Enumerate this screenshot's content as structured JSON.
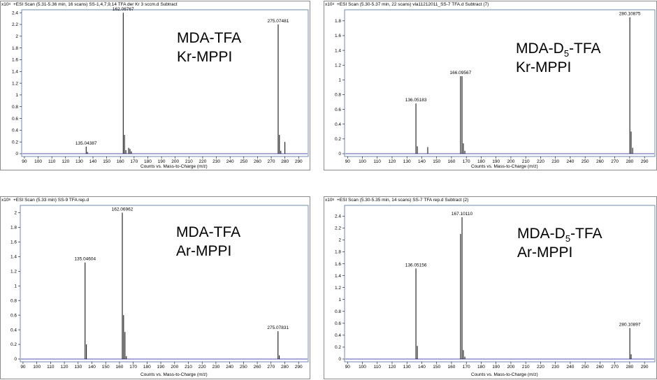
{
  "colors": {
    "frame": "#4a6fa0",
    "bars": "#000000",
    "baseline": "#1a1a9e"
  },
  "chart_data": [
    {
      "type": "bar",
      "title": "+ESI Scan (5.31-5.36 min, 16 scans) SS-1,4,7,9,14 TFA der Kr 3 sccm.d  Subtract",
      "scale": "x10",
      "scale_exp": "4",
      "label_line1": "MDA-TFA",
      "label_line2_a": "Kr-MPPI",
      "label_line2_b": "",
      "label_line2_c": "",
      "sample_line1": "MDA-TFA",
      "sample_line2": "Kr-MPPI",
      "xlabel": "Counts vs. Mass-to-Charge (m/z)",
      "xlim": [
        88,
        297
      ],
      "ylim": [
        0,
        2.45
      ],
      "yticks": [
        "0",
        "0.2",
        "0.4",
        "0.6",
        "0.8",
        "1",
        "1.2",
        "1.4",
        "1.6",
        "1.8",
        "2",
        "2.2",
        "2.4"
      ],
      "xticks": [
        "90",
        "100",
        "110",
        "120",
        "130",
        "140",
        "150",
        "160",
        "170",
        "180",
        "190",
        "200",
        "210",
        "220",
        "230",
        "240",
        "250",
        "260",
        "270",
        "280",
        "290"
      ],
      "peaks": [
        {
          "x": 135.04387,
          "y": 0.12,
          "label": "135.04387"
        },
        {
          "x": 136.0,
          "y": 0.03,
          "label": ""
        },
        {
          "x": 162.06767,
          "y": 2.4,
          "label": "162.06767"
        },
        {
          "x": 163.0,
          "y": 0.32,
          "label": ""
        },
        {
          "x": 164.0,
          "y": 0.06,
          "label": ""
        },
        {
          "x": 166.0,
          "y": 0.1,
          "label": ""
        },
        {
          "x": 167.0,
          "y": 0.08,
          "label": ""
        },
        {
          "x": 168.0,
          "y": 0.04,
          "label": ""
        },
        {
          "x": 275.07481,
          "y": 2.2,
          "label": "275.07481"
        },
        {
          "x": 276.0,
          "y": 0.32,
          "label": ""
        },
        {
          "x": 277.0,
          "y": 0.05,
          "label": ""
        },
        {
          "x": 280.0,
          "y": 0.2,
          "label": ""
        }
      ]
    },
    {
      "type": "bar",
      "title": "+ESI Scan (5.30-5.37 min, 22 scans) vla11212011_SS-7 TFA.d  Subtract (7)",
      "scale": "x10",
      "scale_exp": "3",
      "sample_line1a": "MDA-D",
      "sample_line1sub": "5",
      "sample_line1b": "-TFA",
      "sample_line2": "Kr-MPPI",
      "xlabel": "Counts vs. Mass-to-Charge (m/z)",
      "xlim": [
        88,
        297
      ],
      "ylim": [
        0,
        1.95
      ],
      "yticks": [
        "0",
        "0.2",
        "0.4",
        "0.6",
        "0.8",
        "1",
        "1.2",
        "1.4",
        "1.6",
        "1.8"
      ],
      "xticks": [
        "90",
        "100",
        "110",
        "120",
        "130",
        "140",
        "150",
        "160",
        "170",
        "180",
        "190",
        "200",
        "210",
        "220",
        "230",
        "240",
        "250",
        "260",
        "270",
        "280",
        "290"
      ],
      "peaks": [
        {
          "x": 136.05183,
          "y": 0.68,
          "label": "136.05183"
        },
        {
          "x": 137.0,
          "y": 0.1,
          "label": ""
        },
        {
          "x": 144.0,
          "y": 0.09,
          "label": ""
        },
        {
          "x": 166.09567,
          "y": 1.05,
          "label": "166.09567"
        },
        {
          "x": 167.1,
          "y": 1.05,
          "label": ""
        },
        {
          "x": 168.0,
          "y": 0.14,
          "label": ""
        },
        {
          "x": 169.0,
          "y": 0.04,
          "label": ""
        },
        {
          "x": 280.10875,
          "y": 1.85,
          "label": "280.10875"
        },
        {
          "x": 281.0,
          "y": 0.3,
          "label": ""
        },
        {
          "x": 282.0,
          "y": 0.08,
          "label": ""
        }
      ]
    },
    {
      "type": "bar",
      "title": "+ESI Scan (5.33 min) SS-9 TFA rep.d",
      "scale": "x10",
      "scale_exp": "5",
      "sample_line1": "MDA-TFA",
      "sample_line2": "Ar-MPPI",
      "xlabel": "Counts vs. Mass-to-Charge (m/z)",
      "xlim": [
        88,
        297
      ],
      "ylim": [
        0,
        2.1
      ],
      "yticks": [
        "0",
        "0.2",
        "0.4",
        "0.6",
        "0.8",
        "1",
        "1.2",
        "1.4",
        "1.6",
        "1.8",
        "2"
      ],
      "xticks": [
        "90",
        "100",
        "110",
        "120",
        "130",
        "140",
        "150",
        "160",
        "170",
        "180",
        "190",
        "200",
        "210",
        "220",
        "230",
        "240",
        "250",
        "260",
        "270",
        "280",
        "290"
      ],
      "peaks": [
        {
          "x": 135.04604,
          "y": 1.32,
          "label": "135.04604"
        },
        {
          "x": 136.0,
          "y": 0.2,
          "label": ""
        },
        {
          "x": 162.06962,
          "y": 2.0,
          "label": "162.06962"
        },
        {
          "x": 163.0,
          "y": 0.6,
          "label": ""
        },
        {
          "x": 164.0,
          "y": 0.37,
          "label": ""
        },
        {
          "x": 165.0,
          "y": 0.04,
          "label": ""
        },
        {
          "x": 275.07831,
          "y": 0.38,
          "label": "275.07831"
        },
        {
          "x": 276.0,
          "y": 0.05,
          "label": ""
        }
      ]
    },
    {
      "type": "bar",
      "title": "+ESI Scan (5.30-5.35 min, 14 scans) SS-7 TFA rep.d  Subtract (2)",
      "scale": "x10",
      "scale_exp": "5",
      "sample_line1a": "MDA-D",
      "sample_line1sub": "5",
      "sample_line1b": "-TFA",
      "sample_line2": "Ar-MPPI",
      "xlabel": "Counts vs. Mass-to-Charge (m/z)",
      "xlim": [
        88,
        297
      ],
      "ylim": [
        0,
        2.58
      ],
      "yticks": [
        "0",
        "0.2",
        "0.4",
        "0.6",
        "0.8",
        "1",
        "1.2",
        "1.4",
        "1.6",
        "1.8",
        "2",
        "2.2",
        "2.4"
      ],
      "xticks": [
        "90",
        "100",
        "110",
        "120",
        "130",
        "140",
        "150",
        "160",
        "170",
        "180",
        "190",
        "200",
        "210",
        "220",
        "230",
        "240",
        "250",
        "260",
        "270",
        "280",
        "290"
      ],
      "peaks": [
        {
          "x": 136.05156,
          "y": 1.52,
          "label": "136.05156"
        },
        {
          "x": 137.0,
          "y": 0.22,
          "label": ""
        },
        {
          "x": 166.1,
          "y": 2.1,
          "label": ""
        },
        {
          "x": 167.1011,
          "y": 2.38,
          "label": "167.10110"
        },
        {
          "x": 168.0,
          "y": 0.15,
          "label": ""
        },
        {
          "x": 169.0,
          "y": 0.04,
          "label": ""
        },
        {
          "x": 280.10897,
          "y": 0.52,
          "label": "280.10897"
        },
        {
          "x": 281.0,
          "y": 0.08,
          "label": ""
        }
      ]
    }
  ]
}
